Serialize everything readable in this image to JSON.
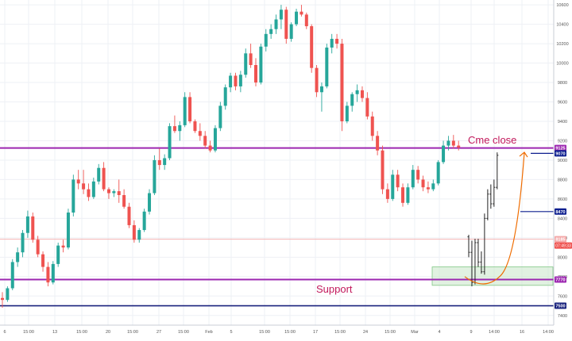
{
  "chart_data": {
    "type": "candlestick",
    "title": "",
    "xlabel": "",
    "ylabel": "",
    "ylim": [
      7300,
      10650
    ],
    "y_ticks": [
      7400,
      7600,
      7800,
      8000,
      8200,
      8400,
      8600,
      8800,
      9000,
      9200,
      9400,
      9600,
      9800,
      10000,
      10200,
      10400,
      10600
    ],
    "x_tick_labels": [
      "6",
      "15:00",
      "13",
      "15:00",
      "20",
      "15:00",
      "27",
      "15:00",
      "Feb",
      "5",
      "15:00",
      "15:00",
      "17",
      "15:00",
      "24",
      "15:00",
      "Mar",
      "4",
      "9",
      "14:00",
      "16",
      "14:00"
    ],
    "grid": true,
    "candles": [
      {
        "o": 7580,
        "h": 7640,
        "l": 7480,
        "c": 7560
      },
      {
        "o": 7560,
        "h": 7700,
        "l": 7540,
        "c": 7680
      },
      {
        "o": 7680,
        "h": 7980,
        "l": 7660,
        "c": 7950
      },
      {
        "o": 7950,
        "h": 8100,
        "l": 7900,
        "c": 8050
      },
      {
        "o": 8050,
        "h": 8280,
        "l": 8000,
        "c": 8250
      },
      {
        "o": 8250,
        "h": 8480,
        "l": 8200,
        "c": 8420
      },
      {
        "o": 8420,
        "h": 8460,
        "l": 8150,
        "c": 8180
      },
      {
        "o": 8180,
        "h": 8220,
        "l": 8000,
        "c": 8030
      },
      {
        "o": 8030,
        "h": 8060,
        "l": 7850,
        "c": 7900
      },
      {
        "o": 7900,
        "h": 7950,
        "l": 7700,
        "c": 7740
      },
      {
        "o": 7740,
        "h": 7960,
        "l": 7720,
        "c": 7930
      },
      {
        "o": 7930,
        "h": 8150,
        "l": 7900,
        "c": 8120
      },
      {
        "o": 8120,
        "h": 8180,
        "l": 8050,
        "c": 8100
      },
      {
        "o": 8100,
        "h": 8500,
        "l": 8080,
        "c": 8460
      },
      {
        "o": 8460,
        "h": 8850,
        "l": 8420,
        "c": 8800
      },
      {
        "o": 8800,
        "h": 8900,
        "l": 8700,
        "c": 8760
      },
      {
        "o": 8760,
        "h": 8900,
        "l": 8650,
        "c": 8700
      },
      {
        "o": 8700,
        "h": 8760,
        "l": 8580,
        "c": 8620
      },
      {
        "o": 8620,
        "h": 8820,
        "l": 8600,
        "c": 8780
      },
      {
        "o": 8780,
        "h": 8960,
        "l": 8750,
        "c": 8920
      },
      {
        "o": 8920,
        "h": 8980,
        "l": 8680,
        "c": 8700
      },
      {
        "o": 8700,
        "h": 8720,
        "l": 8600,
        "c": 8660
      },
      {
        "o": 8660,
        "h": 8700,
        "l": 8620,
        "c": 8680
      },
      {
        "o": 8680,
        "h": 8800,
        "l": 8560,
        "c": 8640
      },
      {
        "o": 8640,
        "h": 8700,
        "l": 8500,
        "c": 8520
      },
      {
        "o": 8520,
        "h": 8560,
        "l": 8300,
        "c": 8330
      },
      {
        "o": 8330,
        "h": 8380,
        "l": 8150,
        "c": 8180
      },
      {
        "o": 8180,
        "h": 8300,
        "l": 8150,
        "c": 8280
      },
      {
        "o": 8280,
        "h": 8500,
        "l": 8260,
        "c": 8470
      },
      {
        "o": 8470,
        "h": 8700,
        "l": 8440,
        "c": 8660
      },
      {
        "o": 8660,
        "h": 9050,
        "l": 8640,
        "c": 9000
      },
      {
        "o": 9000,
        "h": 9120,
        "l": 8900,
        "c": 8950
      },
      {
        "o": 8950,
        "h": 9060,
        "l": 8900,
        "c": 9020
      },
      {
        "o": 9020,
        "h": 9380,
        "l": 9000,
        "c": 9350
      },
      {
        "o": 9350,
        "h": 9460,
        "l": 9280,
        "c": 9300
      },
      {
        "o": 9300,
        "h": 9400,
        "l": 9200,
        "c": 9360
      },
      {
        "o": 9360,
        "h": 9700,
        "l": 9340,
        "c": 9650
      },
      {
        "o": 9650,
        "h": 9700,
        "l": 9380,
        "c": 9400
      },
      {
        "o": 9400,
        "h": 9420,
        "l": 9280,
        "c": 9300
      },
      {
        "o": 9300,
        "h": 9380,
        "l": 9200,
        "c": 9250
      },
      {
        "o": 9250,
        "h": 9300,
        "l": 9120,
        "c": 9150
      },
      {
        "o": 9150,
        "h": 9200,
        "l": 9080,
        "c": 9100
      },
      {
        "o": 9100,
        "h": 9360,
        "l": 9080,
        "c": 9330
      },
      {
        "o": 9330,
        "h": 9600,
        "l": 9300,
        "c": 9560
      },
      {
        "o": 9560,
        "h": 9780,
        "l": 9520,
        "c": 9750
      },
      {
        "o": 9750,
        "h": 9900,
        "l": 9700,
        "c": 9870
      },
      {
        "o": 9870,
        "h": 9900,
        "l": 9720,
        "c": 9760
      },
      {
        "o": 9760,
        "h": 9920,
        "l": 9700,
        "c": 9880
      },
      {
        "o": 9880,
        "h": 10150,
        "l": 9850,
        "c": 10100
      },
      {
        "o": 10100,
        "h": 10200,
        "l": 9950,
        "c": 9980
      },
      {
        "o": 9980,
        "h": 10050,
        "l": 9760,
        "c": 9800
      },
      {
        "o": 9800,
        "h": 10200,
        "l": 9780,
        "c": 10170
      },
      {
        "o": 10170,
        "h": 10350,
        "l": 10120,
        "c": 10300
      },
      {
        "o": 10300,
        "h": 10400,
        "l": 10250,
        "c": 10350
      },
      {
        "o": 10350,
        "h": 10500,
        "l": 10300,
        "c": 10450
      },
      {
        "o": 10450,
        "h": 10600,
        "l": 10350,
        "c": 10550
      },
      {
        "o": 10550,
        "h": 10580,
        "l": 10200,
        "c": 10250
      },
      {
        "o": 10250,
        "h": 10420,
        "l": 10220,
        "c": 10400
      },
      {
        "o": 10400,
        "h": 10560,
        "l": 10380,
        "c": 10530
      },
      {
        "o": 10530,
        "h": 10600,
        "l": 10480,
        "c": 10500
      },
      {
        "o": 10500,
        "h": 10520,
        "l": 10350,
        "c": 10380
      },
      {
        "o": 10380,
        "h": 10400,
        "l": 9900,
        "c": 9950
      },
      {
        "o": 9950,
        "h": 9980,
        "l": 9650,
        "c": 9700
      },
      {
        "o": 9700,
        "h": 9800,
        "l": 9500,
        "c": 9760
      },
      {
        "o": 9760,
        "h": 10200,
        "l": 9740,
        "c": 10160
      },
      {
        "o": 10160,
        "h": 10300,
        "l": 10100,
        "c": 10250
      },
      {
        "o": 10250,
        "h": 10300,
        "l": 10150,
        "c": 10200
      },
      {
        "o": 10200,
        "h": 10250,
        "l": 9300,
        "c": 9400
      },
      {
        "o": 9400,
        "h": 9600,
        "l": 9380,
        "c": 9560
      },
      {
        "o": 9560,
        "h": 9700,
        "l": 9500,
        "c": 9680
      },
      {
        "o": 9680,
        "h": 9780,
        "l": 9600,
        "c": 9720
      },
      {
        "o": 9720,
        "h": 9760,
        "l": 9600,
        "c": 9640
      },
      {
        "o": 9640,
        "h": 9700,
        "l": 9420,
        "c": 9450
      },
      {
        "o": 9450,
        "h": 9500,
        "l": 9200,
        "c": 9250
      },
      {
        "o": 9250,
        "h": 9300,
        "l": 9050,
        "c": 9100
      },
      {
        "o": 9100,
        "h": 9150,
        "l": 8650,
        "c": 8700
      },
      {
        "o": 8700,
        "h": 8760,
        "l": 8560,
        "c": 8600
      },
      {
        "o": 8600,
        "h": 8900,
        "l": 8580,
        "c": 8850
      },
      {
        "o": 8850,
        "h": 8900,
        "l": 8680,
        "c": 8720
      },
      {
        "o": 8720,
        "h": 8760,
        "l": 8520,
        "c": 8560
      },
      {
        "o": 8560,
        "h": 8760,
        "l": 8540,
        "c": 8720
      },
      {
        "o": 8720,
        "h": 8950,
        "l": 8700,
        "c": 8900
      },
      {
        "o": 8900,
        "h": 8940,
        "l": 8760,
        "c": 8800
      },
      {
        "o": 8800,
        "h": 8840,
        "l": 8680,
        "c": 8720
      },
      {
        "o": 8720,
        "h": 8780,
        "l": 8660,
        "c": 8700
      },
      {
        "o": 8700,
        "h": 8800,
        "l": 8680,
        "c": 8760
      },
      {
        "o": 8760,
        "h": 9000,
        "l": 8740,
        "c": 8980
      },
      {
        "o": 8980,
        "h": 9200,
        "l": 8960,
        "c": 9150
      },
      {
        "o": 9150,
        "h": 9250,
        "l": 9100,
        "c": 9200
      },
      {
        "o": 9200,
        "h": 9260,
        "l": 9120,
        "c": 9150
      },
      {
        "o": 9150,
        "h": 9200,
        "l": 9100,
        "c": 9130
      },
      {
        "o": 8210,
        "h": 8230,
        "l": 8000,
        "c": 8050
      },
      {
        "o": 8050,
        "h": 8170,
        "l": 7700,
        "c": 7740
      },
      {
        "o": 7740,
        "h": 8190,
        "l": 7720,
        "c": 8150
      },
      {
        "o": 8150,
        "h": 8190,
        "l": 7900,
        "c": 7950
      },
      {
        "o": 7950,
        "h": 8060,
        "l": 7830,
        "c": 7850
      },
      {
        "o": 7850,
        "h": 8450,
        "l": 7820,
        "c": 8400
      },
      {
        "o": 8400,
        "h": 8700,
        "l": 8380,
        "c": 8650
      },
      {
        "o": 8650,
        "h": 8750,
        "l": 8500,
        "c": 8550
      },
      {
        "o": 8550,
        "h": 8800,
        "l": 8520,
        "c": 8720
      },
      {
        "o": 8720,
        "h": 9080,
        "l": 8700,
        "c": 9050
      }
    ],
    "horizontal_lines": [
      {
        "y": 9125,
        "color": "#9c27b0",
        "label": "9125"
      },
      {
        "y": 7770,
        "color": "#9c27b0",
        "label": "7770"
      },
      {
        "y": 7500,
        "color": "#1a237e",
        "label": "7500"
      },
      {
        "y": 9070,
        "color": "#0d1f8f",
        "label": "9070"
      },
      {
        "y": 8470,
        "color": "#0d1f8f",
        "label": "8470"
      },
      {
        "y": 8185,
        "color": "#f4a9a9",
        "label": "8185"
      }
    ],
    "countdown_label": "07:49:33",
    "annotations": [
      {
        "text": "Cme close",
        "color": "#c2185b"
      },
      {
        "text": "Support",
        "color": "#c2185b"
      }
    ],
    "support_zone": {
      "y_low": 7710,
      "y_high": 7900,
      "color": "#c8e6c9"
    },
    "projection_arrow": {
      "color": "#ef6c00",
      "from_y": 7800,
      "low_y": 7760,
      "to_y": 9130
    },
    "colors": {
      "up": "#26a69a",
      "down": "#ef5350",
      "grid": "#eef0f5",
      "axis_text": "#555555"
    }
  }
}
